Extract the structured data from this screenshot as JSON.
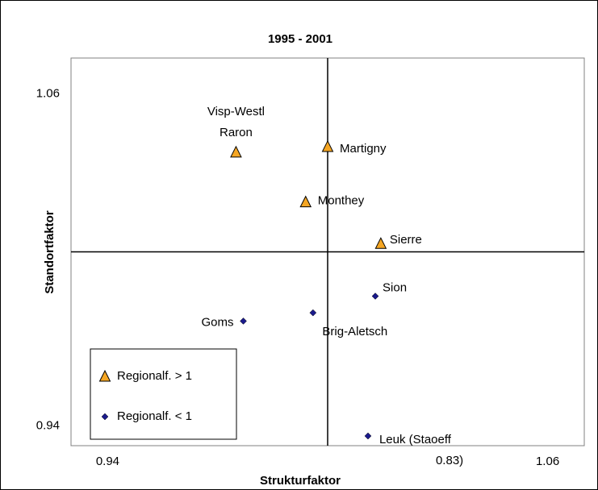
{
  "chart_data": {
    "type": "scatter",
    "title": "1995 - 2001",
    "xlabel": "Strukturfaktor",
    "ylabel": "Standortfaktor",
    "xlim": [
      0.93,
      1.07
    ],
    "ylim": [
      0.93,
      1.07
    ],
    "xticks": [
      0.94,
      1.06
    ],
    "yticks": [
      0.94,
      1.06
    ],
    "cross": [
      1.0,
      1.0
    ],
    "series": [
      {
        "name": "Regionalf. > 1",
        "color": "#f5a623",
        "marker": "triangle",
        "x": [
          0.975,
          1.0,
          0.994,
          1.0145
        ],
        "values": [
          1.036,
          1.038,
          1.018,
          1.003
        ],
        "labels": [
          [
            "Visp-Westl",
            "Raron"
          ],
          [
            "Martigny"
          ],
          [
            "Monthey"
          ],
          [
            "Sierre"
          ]
        ]
      },
      {
        "name": "Regionalf. < 1",
        "color": "#1a1a8c",
        "marker": "diamond",
        "x": [
          1.013,
          0.996,
          0.977,
          1.011
        ],
        "values": [
          0.984,
          0.978,
          0.975,
          0.9335
        ],
        "labels": [
          [
            "Sion"
          ],
          [
            "Brig-Aletsch"
          ],
          [
            "Goms"
          ],
          [
            "Leuk (Staoeff",
            "0.83)"
          ]
        ]
      }
    ]
  }
}
